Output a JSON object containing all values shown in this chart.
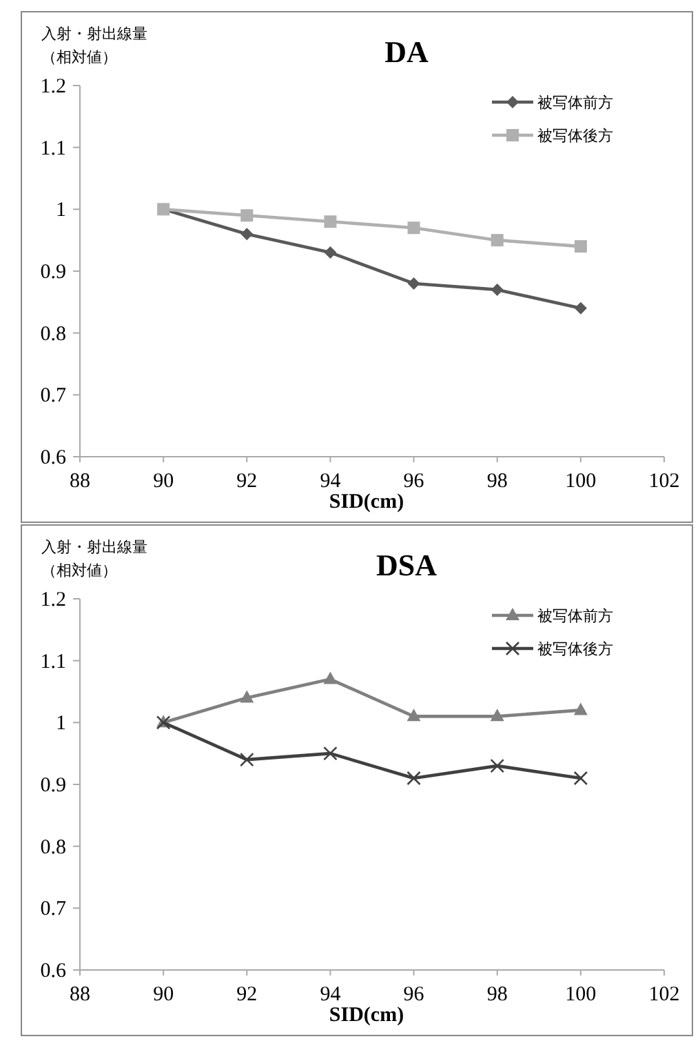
{
  "chart_data": [
    {
      "type": "line",
      "title": "DA",
      "xlabel": "SID(cm)",
      "ylabel": "入射・射出線量（相対値）",
      "x": [
        90,
        92,
        94,
        96,
        98,
        100
      ],
      "series": [
        {
          "name": "被写体前方",
          "color": "#595959",
          "marker": "diamond",
          "values": [
            1.0,
            0.96,
            0.93,
            0.88,
            0.87,
            0.84
          ]
        },
        {
          "name": "被写体後方",
          "color": "#b0b0b0",
          "marker": "square",
          "values": [
            1.0,
            0.99,
            0.98,
            0.97,
            0.95,
            0.94
          ]
        }
      ],
      "xlim": [
        88,
        102
      ],
      "xticks": [
        88,
        90,
        92,
        94,
        96,
        98,
        100,
        102
      ],
      "ylim": [
        0.6,
        1.2
      ],
      "yticks": [
        0.6,
        0.7,
        0.8,
        0.9,
        {
          "value": 1,
          "label": "1"
        },
        1.1,
        1.2
      ],
      "grid": false,
      "legend": "top right"
    },
    {
      "type": "line",
      "title": "DSA",
      "xlabel": "SID(cm)",
      "ylabel": "入射・射出線量（相対値）",
      "x": [
        90,
        92,
        94,
        96,
        98,
        100
      ],
      "series": [
        {
          "name": "被写体前方",
          "color": "#808080",
          "marker": "triangle",
          "values": [
            1.0,
            1.04,
            1.07,
            1.01,
            1.01,
            1.02
          ]
        },
        {
          "name": "被写体後方",
          "color": "#404040",
          "marker": "cross",
          "values": [
            1.0,
            0.94,
            0.95,
            0.91,
            0.93,
            0.91
          ]
        }
      ],
      "xlim": [
        88,
        102
      ],
      "xticks": [
        88,
        90,
        92,
        94,
        96,
        98,
        100,
        102
      ],
      "ylim": [
        0.6,
        1.2
      ],
      "yticks": [
        0.6,
        0.7,
        0.8,
        0.9,
        {
          "value": 1,
          "label": "1"
        },
        1.1,
        1.2
      ],
      "grid": false,
      "legend": "top right"
    }
  ]
}
